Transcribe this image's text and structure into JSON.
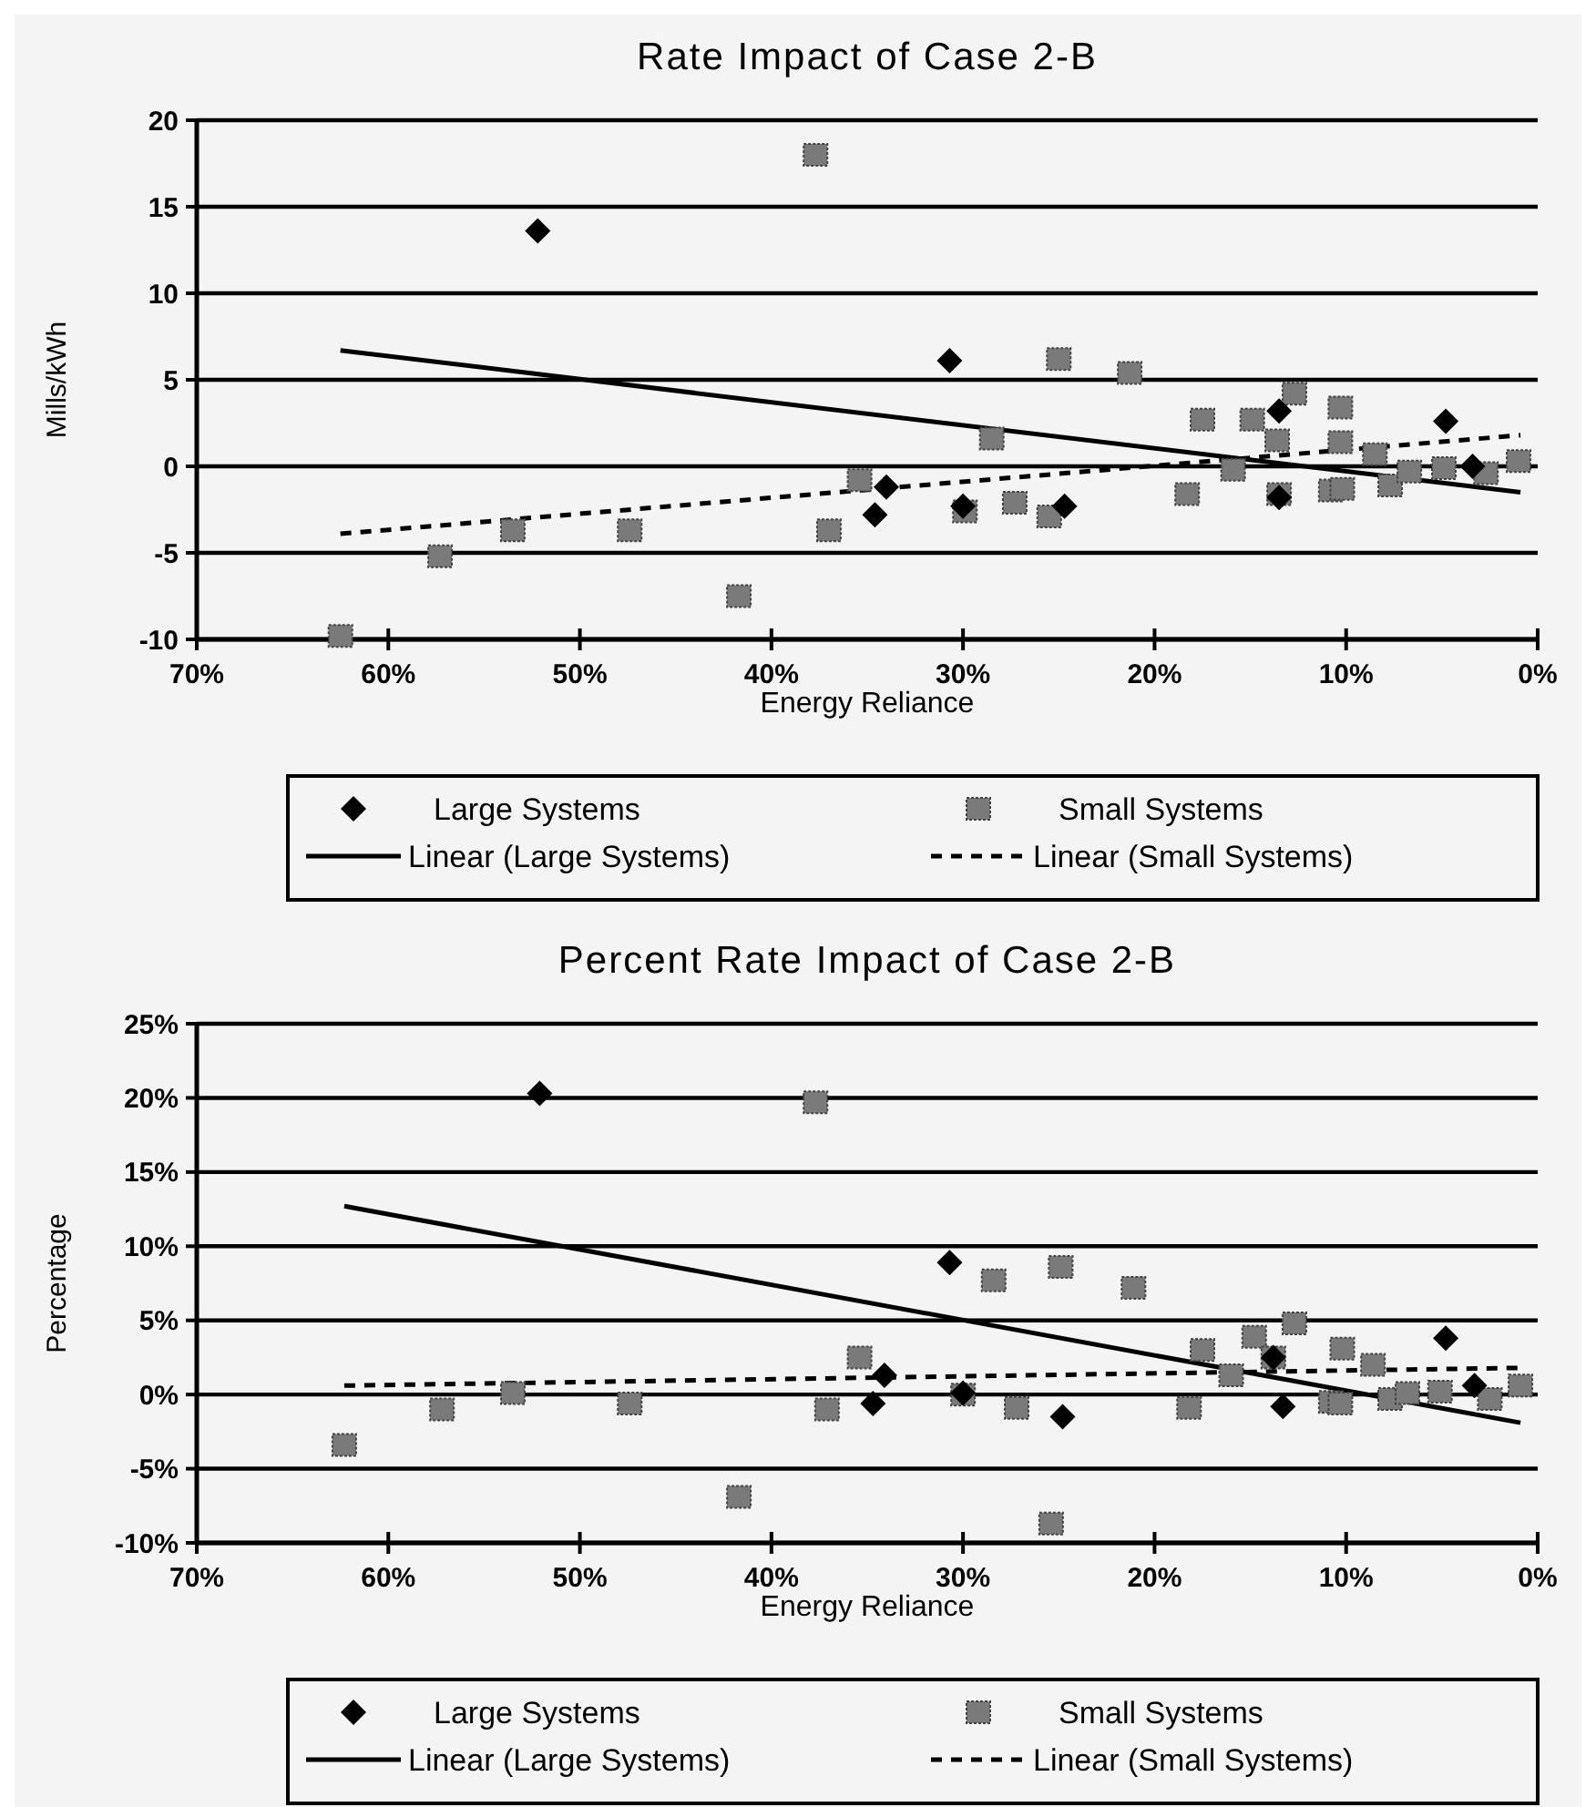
{
  "chart_data": [
    {
      "type": "scatter",
      "title": "Rate Impact of Case 2-B",
      "xlabel": "Energy Reliance",
      "ylabel": "Mills/kWh",
      "xlim": [
        70,
        0
      ],
      "xticks": [
        {
          "value": 70,
          "label": "70%"
        },
        {
          "value": 60,
          "label": "60%"
        },
        {
          "value": 50,
          "label": "50%"
        },
        {
          "value": 40,
          "label": "40%"
        },
        {
          "value": 30,
          "label": "30%"
        },
        {
          "value": 20,
          "label": "20%"
        },
        {
          "value": 10,
          "label": "10%"
        },
        {
          "value": 0,
          "label": "0%"
        }
      ],
      "ylim": [
        -10,
        20
      ],
      "yticks": [
        -10,
        -5,
        0,
        5,
        10,
        15,
        20
      ],
      "grid": "y",
      "legend": "bottom",
      "series": [
        {
          "name": "Large Systems",
          "marker": "diamond",
          "color": "#000000",
          "x": [
            52.2,
            34.0,
            34.6,
            30.7,
            30.0,
            24.7,
            13.5,
            13.5,
            4.8,
            3.4
          ],
          "values": [
            13.6,
            -1.2,
            -2.8,
            6.1,
            -2.3,
            -2.3,
            3.2,
            -1.8,
            2.6,
            0.0
          ]
        },
        {
          "name": "Small Systems",
          "marker": "square",
          "color": "#7a7a7a",
          "x": [
            62.5,
            57.3,
            53.5,
            47.4,
            41.7,
            37.7,
            37.0,
            35.4,
            29.9,
            28.5,
            27.3,
            25.5,
            25.0,
            21.3,
            18.3,
            17.5,
            15.9,
            14.9,
            13.6,
            13.5,
            12.7,
            10.8,
            10.3,
            10.3,
            10.2,
            8.5,
            7.7,
            6.7,
            4.9,
            2.7,
            1.0
          ],
          "values": [
            -9.8,
            -5.2,
            -3.7,
            -3.7,
            -7.5,
            18.0,
            -3.7,
            -0.8,
            -2.6,
            1.6,
            -2.1,
            -2.9,
            6.2,
            5.4,
            -1.6,
            2.7,
            -0.2,
            2.7,
            1.5,
            -1.6,
            4.2,
            -1.4,
            3.4,
            1.4,
            -1.3,
            0.7,
            -1.1,
            -0.3,
            -0.1,
            -0.4,
            0.3
          ]
        },
        {
          "name": "Linear (Large Systems)",
          "type": "line",
          "line_style": "solid",
          "color": "#000000",
          "x": [
            62.5,
            0.9
          ],
          "values": [
            6.7,
            -1.5
          ]
        },
        {
          "name": "Linear (Small Systems)",
          "type": "line",
          "line_style": "dashed",
          "color": "#000000",
          "x": [
            62.5,
            0.9
          ],
          "values": [
            -3.9,
            1.8
          ]
        }
      ]
    },
    {
      "type": "scatter",
      "title": "Percent Rate Impact of Case 2-B",
      "xlabel": "Energy Reliance",
      "ylabel": "Percentage",
      "xlim": [
        70,
        0
      ],
      "xticks": [
        {
          "value": 70,
          "label": "70%"
        },
        {
          "value": 60,
          "label": "60%"
        },
        {
          "value": 50,
          "label": "50%"
        },
        {
          "value": 40,
          "label": "40%"
        },
        {
          "value": 30,
          "label": "30%"
        },
        {
          "value": 20,
          "label": "20%"
        },
        {
          "value": 10,
          "label": "10%"
        },
        {
          "value": 0,
          "label": "0%"
        }
      ],
      "ylim": [
        -10,
        25
      ],
      "yticks": [
        {
          "value": -10,
          "label": "-10%"
        },
        {
          "value": -5,
          "label": "-5%"
        },
        {
          "value": 0,
          "label": "0%"
        },
        {
          "value": 5,
          "label": "5%"
        },
        {
          "value": 10,
          "label": "10%"
        },
        {
          "value": 15,
          "label": "15%"
        },
        {
          "value": 20,
          "label": "20%"
        },
        {
          "value": 25,
          "label": "25%"
        }
      ],
      "grid": "y",
      "legend": "bottom",
      "series": [
        {
          "name": "Large Systems",
          "marker": "diamond",
          "color": "#000000",
          "x": [
            52.1,
            34.1,
            34.7,
            30.7,
            30.0,
            24.8,
            13.8,
            13.3,
            4.8,
            3.3
          ],
          "values": [
            20.3,
            1.3,
            -0.6,
            8.9,
            0.1,
            -1.5,
            2.5,
            -0.8,
            3.8,
            0.6
          ]
        },
        {
          "name": "Small Systems",
          "marker": "square",
          "color": "#7a7a7a",
          "x": [
            62.3,
            57.2,
            53.5,
            47.4,
            41.7,
            37.7,
            37.1,
            35.4,
            30.0,
            28.4,
            27.2,
            25.4,
            24.9,
            21.1,
            18.2,
            17.5,
            16.0,
            14.8,
            13.8,
            12.7,
            10.8,
            10.2,
            10.3,
            8.6,
            7.7,
            6.8,
            5.1,
            2.5,
            0.9
          ],
          "values": [
            -3.4,
            -1.0,
            0.1,
            -0.6,
            -6.9,
            19.7,
            -1.0,
            2.5,
            0.0,
            7.7,
            -0.9,
            -8.7,
            8.6,
            7.2,
            -0.9,
            3.0,
            1.3,
            3.9,
            2.5,
            4.8,
            -0.5,
            3.1,
            -0.6,
            2.0,
            -0.3,
            0.1,
            0.2,
            -0.3,
            0.6
          ]
        },
        {
          "name": "Linear (Large Systems)",
          "type": "line",
          "line_style": "solid",
          "color": "#000000",
          "x": [
            62.3,
            0.9
          ],
          "values": [
            12.7,
            -1.9
          ]
        },
        {
          "name": "Linear (Small Systems)",
          "type": "line",
          "line_style": "dashed",
          "color": "#000000",
          "x": [
            62.3,
            0.9
          ],
          "values": [
            0.6,
            1.8
          ]
        }
      ]
    }
  ]
}
